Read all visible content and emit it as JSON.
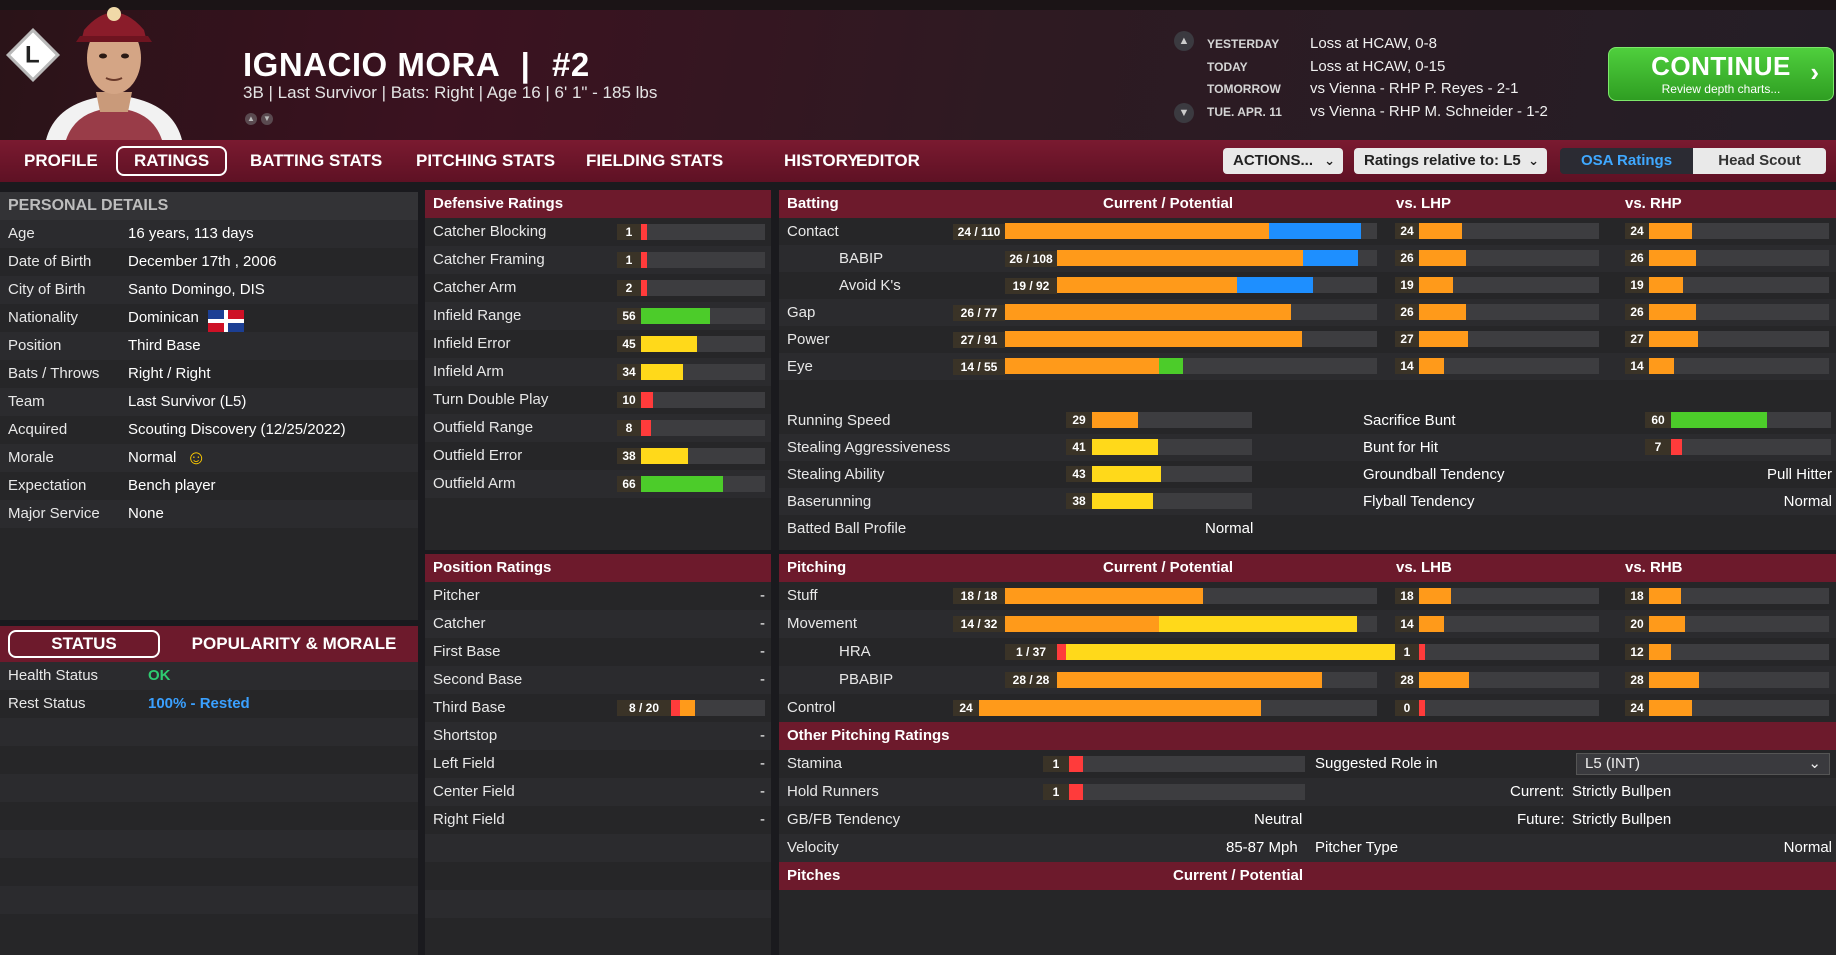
{
  "player": {
    "name": "IGNACIO MORA",
    "number": "#2",
    "info": "3B | Last Survivor  |  Bats: Right  |  Age 16  |  6' 1\" - 185 lbs",
    "team_logo_letter": "L"
  },
  "schedule": [
    {
      "label": "YESTERDAY",
      "value": "Loss at HCAW, 0-8"
    },
    {
      "label": "TODAY",
      "value": "Loss at HCAW, 0-15"
    },
    {
      "label": "TOMORROW",
      "value": "vs Vienna - RHP P. Reyes - 2-1"
    },
    {
      "label": "TUE. APR. 11",
      "value": "vs Vienna - RHP M. Schneider - 1-2"
    }
  ],
  "continue": {
    "label": "CONTINUE",
    "sub": "Review depth charts..."
  },
  "tabs": [
    "PROFILE",
    "RATINGS",
    "BATTING STATS",
    "PITCHING STATS",
    "FIELDING STATS",
    "HISTORY",
    "EDITOR"
  ],
  "active_tab": "RATINGS",
  "toolbar": {
    "actions": "ACTIONS...",
    "relative": "Ratings relative to: L5",
    "osa": "OSA Ratings",
    "scout": "Head Scout"
  },
  "personal": {
    "title": "PERSONAL DETAILS",
    "rows": [
      {
        "label": "Age",
        "value": "16 years, 113 days"
      },
      {
        "label": "Date of Birth",
        "value": "December 17th , 2006"
      },
      {
        "label": "City of Birth",
        "value": "Santo Domingo, DIS"
      },
      {
        "label": "Nationality",
        "value": "Dominican"
      },
      {
        "label": "Position",
        "value": "Third Base"
      },
      {
        "label": "Bats / Throws",
        "value": "Right / Right"
      },
      {
        "label": "Team",
        "value": "Last Survivor (L5)"
      },
      {
        "label": "Acquired",
        "value": "Scouting Discovery (12/25/2022)"
      },
      {
        "label": "Morale",
        "value": "Normal"
      },
      {
        "label": "Expectation",
        "value": "Bench player"
      },
      {
        "label": "Major Service",
        "value": "None"
      }
    ]
  },
  "status": {
    "tabs": [
      "STATUS",
      "POPULARITY & MORALE"
    ],
    "rows": [
      {
        "label": "Health Status",
        "value": "OK",
        "color": "#2ecc71"
      },
      {
        "label": "Rest Status",
        "value": "100% - Rested",
        "color": "#3aa0ff"
      }
    ]
  },
  "defensive": {
    "title": "Defensive Ratings",
    "rows": [
      {
        "label": "Catcher Blocking",
        "value": "1",
        "level": 1
      },
      {
        "label": "Catcher Framing",
        "value": "1",
        "level": 1
      },
      {
        "label": "Catcher Arm",
        "value": "2",
        "level": 2
      },
      {
        "label": "Infield Range",
        "value": "56",
        "level": 56
      },
      {
        "label": "Infield Error",
        "value": "45",
        "level": 45
      },
      {
        "label": "Infield Arm",
        "value": "34",
        "level": 34
      },
      {
        "label": "Turn Double Play",
        "value": "10",
        "level": 10
      },
      {
        "label": "Outfield Range",
        "value": "8",
        "level": 8
      },
      {
        "label": "Outfield Error",
        "value": "38",
        "level": 38
      },
      {
        "label": "Outfield Arm",
        "value": "66",
        "level": 66
      }
    ]
  },
  "position_ratings": {
    "title": "Position Ratings",
    "rows": [
      {
        "label": "Pitcher",
        "value": "-"
      },
      {
        "label": "Catcher",
        "value": "-"
      },
      {
        "label": "First Base",
        "value": "-"
      },
      {
        "label": "Second Base",
        "value": "-"
      },
      {
        "label": "Third Base",
        "value": "8 / 20",
        "cur": 8,
        "pot": 20
      },
      {
        "label": "Shortstop",
        "value": "-"
      },
      {
        "label": "Left Field",
        "value": "-"
      },
      {
        "label": "Center Field",
        "value": "-"
      },
      {
        "label": "Right Field",
        "value": "-"
      }
    ]
  },
  "batting": {
    "title": "Batting",
    "col_cp": "Current / Potential",
    "col_l": "vs. LHP",
    "col_r": "vs. RHP",
    "rows": [
      {
        "label": "Contact",
        "value": "24 / 110",
        "cur": 24,
        "pot": 110,
        "l": "24",
        "r": "24",
        "pcolor": "#1e8fff",
        "indent": false
      },
      {
        "label": "BABIP",
        "value": "26 / 108",
        "cur": 26,
        "pot": 108,
        "l": "26",
        "r": "26",
        "pcolor": "#1e8fff",
        "indent": true
      },
      {
        "label": "Avoid K's",
        "value": "19 / 92",
        "cur": 19,
        "pot": 92,
        "l": "19",
        "r": "19",
        "pcolor": "#1e8fff",
        "indent": true
      },
      {
        "label": "Gap",
        "value": "26 / 77",
        "cur": 26,
        "pot": 77,
        "l": "26",
        "r": "26",
        "pcolor": "#1fc08f",
        "indent": false
      },
      {
        "label": "Power",
        "value": "27 / 91",
        "cur": 27,
        "pot": 91,
        "l": "27",
        "r": "27",
        "pcolor": "#1e8fff",
        "indent": false
      },
      {
        "label": "Eye",
        "value": "14 / 55",
        "cur": 14,
        "pot": 55,
        "l": "14",
        "r": "14",
        "pcolor": "#4ccc2a",
        "indent": false
      }
    ],
    "running": [
      {
        "label": "Running Speed",
        "value": "29",
        "level": 29
      },
      {
        "label": "Stealing Aggressiveness",
        "value": "41",
        "level": 41
      },
      {
        "label": "Stealing Ability",
        "value": "43",
        "level": 43
      },
      {
        "label": "Baserunning",
        "value": "38",
        "level": 38
      }
    ],
    "right": [
      {
        "label": "Sacrifice Bunt",
        "value": "60",
        "level": 60
      },
      {
        "label": "Bunt for Hit",
        "value": "7",
        "level": 7
      },
      {
        "label": "Groundball Tendency",
        "text": "Pull Hitter"
      },
      {
        "label": "Flyball Tendency",
        "text": "Normal"
      }
    ],
    "profile_label": "Batted Ball Profile",
    "profile_value": "Normal"
  },
  "pitching": {
    "title": "Pitching",
    "col_cp": "Current / Potential",
    "col_l": "vs. LHB",
    "col_r": "vs. RHB",
    "rows": [
      {
        "label": "Stuff",
        "value": "18 / 18",
        "cur": 18,
        "pot": 18,
        "l": "18",
        "r": "18",
        "indent": false
      },
      {
        "label": "Movement",
        "value": "14 / 32",
        "cur": 14,
        "pot": 32,
        "l": "14",
        "r": "20",
        "indent": false
      },
      {
        "label": "HRA",
        "value": "1 / 37",
        "cur": 1,
        "pot": 37,
        "l": "1",
        "r": "12",
        "indent": true
      },
      {
        "label": "PBABIP",
        "value": "28 / 28",
        "cur": 28,
        "pot": 28,
        "l": "28",
        "r": "28",
        "indent": true
      },
      {
        "label": "Control",
        "value": "24",
        "cur": 24,
        "pot": 24,
        "l": "0",
        "r": "24",
        "indent": false
      }
    ]
  },
  "other_pitching": {
    "title": "Other Pitching Ratings",
    "stamina_label": "Stamina",
    "stamina_value": "1",
    "hold_label": "Hold Runners",
    "hold_value": "1",
    "gbfb_label": "GB/FB Tendency",
    "gbfb_value": "Neutral",
    "velo_label": "Velocity",
    "velo_value": "85-87 Mph",
    "role_label": "Suggested Role in",
    "role_select": "L5 (INT)",
    "current_label": "Current:",
    "current_value": "Strictly Bullpen",
    "future_label": "Future:",
    "future_value": "Strictly Bullpen",
    "ptype_label": "Pitcher Type",
    "ptype_value": "Normal"
  },
  "pitches": {
    "title": "Pitches",
    "col": "Current / Potential"
  }
}
